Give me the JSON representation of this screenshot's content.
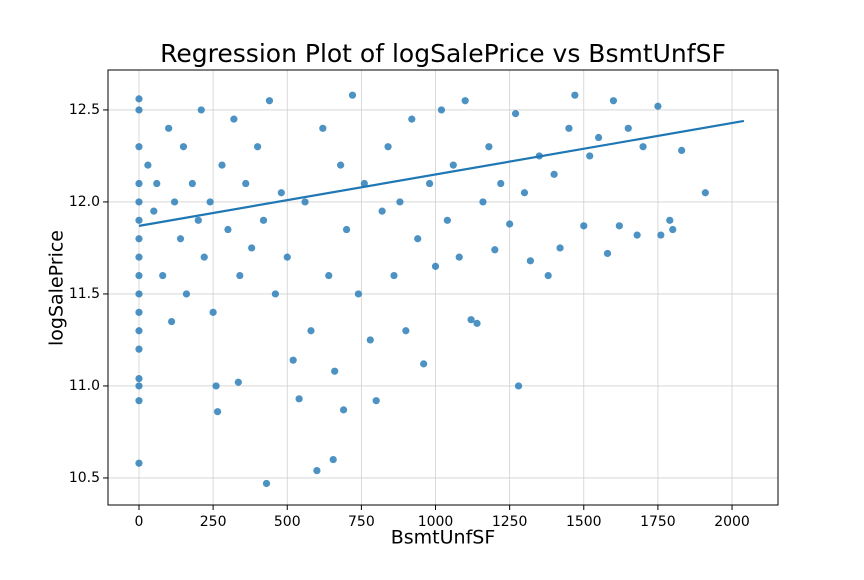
{
  "chart_data": {
    "type": "scatter",
    "title": "Regression Plot of logSalePrice vs BsmtUnfSF",
    "x_label": "BsmtUnfSF",
    "y_label": "logSalePrice",
    "color": "#1f77b4",
    "grid": true,
    "xlim": [
      -104.5,
      2155
    ],
    "ylim": [
      10.353,
      12.717
    ],
    "xticks": [
      0,
      250,
      500,
      750,
      1000,
      1250,
      1500,
      1750,
      2000
    ],
    "yticks": [
      10.5,
      {
        "value": 11,
        "label": "11.0"
      },
      11.5,
      {
        "value": 12,
        "label": "12.0"
      },
      12.5
    ],
    "x": [
      0,
      0,
      0,
      0,
      0,
      0,
      0,
      0,
      0,
      0,
      0,
      0,
      0,
      0,
      0,
      0,
      0,
      30,
      50,
      60,
      80,
      100,
      110,
      120,
      140,
      150,
      160,
      180,
      200,
      210,
      220,
      240,
      250,
      260,
      265,
      280,
      300,
      320,
      335,
      340,
      360,
      380,
      400,
      420,
      430,
      440,
      460,
      480,
      500,
      520,
      540,
      560,
      580,
      600,
      620,
      640,
      655,
      660,
      680,
      690,
      700,
      720,
      740,
      760,
      780,
      800,
      820,
      840,
      860,
      880,
      900,
      920,
      940,
      960,
      980,
      1000,
      1020,
      1040,
      1060,
      1080,
      1100,
      1120,
      1140,
      1160,
      1180,
      1200,
      1220,
      1250,
      1270,
      1280,
      1300,
      1320,
      1350,
      1380,
      1400,
      1420,
      1450,
      1470,
      1500,
      1520,
      1550,
      1580,
      1600,
      1620,
      1650,
      1680,
      1700,
      1750,
      1760,
      1790,
      1800,
      1830,
      1910
    ],
    "values": [
      12.56,
      12.5,
      12.3,
      12.1,
      12.0,
      11.9,
      11.8,
      11.7,
      11.6,
      11.5,
      11.4,
      11.3,
      11.2,
      11.04,
      11.0,
      10.92,
      10.58,
      12.2,
      11.95,
      12.1,
      11.6,
      12.4,
      11.35,
      12.0,
      11.8,
      12.3,
      11.5,
      12.1,
      11.9,
      12.5,
      11.7,
      12.0,
      11.4,
      11.0,
      10.86,
      12.2,
      11.85,
      12.45,
      11.02,
      11.6,
      12.1,
      11.75,
      12.3,
      11.9,
      10.47,
      12.55,
      11.5,
      12.05,
      11.7,
      11.14,
      10.93,
      12.0,
      11.3,
      10.54,
      12.4,
      11.6,
      10.6,
      11.08,
      12.2,
      10.87,
      11.85,
      12.58,
      11.5,
      12.1,
      11.25,
      10.92,
      11.95,
      12.3,
      11.6,
      12.0,
      11.3,
      12.45,
      11.8,
      11.12,
      12.1,
      11.65,
      12.5,
      11.9,
      12.2,
      11.7,
      12.55,
      11.36,
      11.34,
      12.0,
      12.3,
      11.74,
      12.1,
      11.88,
      12.48,
      11.0,
      12.05,
      11.68,
      12.25,
      11.6,
      12.15,
      11.75,
      12.4,
      12.58,
      11.87,
      12.25,
      12.35,
      11.72,
      12.55,
      11.87,
      12.4,
      11.82,
      12.3,
      12.52,
      11.82,
      11.9,
      11.85,
      12.28,
      12.05
    ],
    "regression": {
      "x": [
        0,
        2040
      ],
      "values": [
        11.87,
        12.44
      ]
    }
  }
}
